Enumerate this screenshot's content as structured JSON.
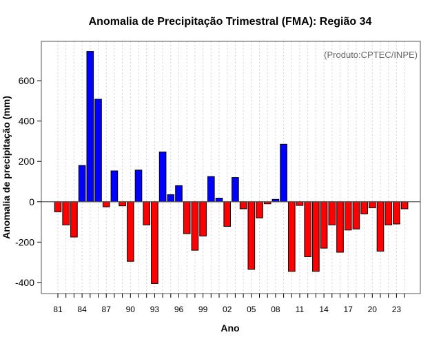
{
  "chart_data": {
    "type": "bar",
    "title": "Anomalia de Precipitação Trimestral (FMA): Região 34",
    "xlabel": "Ano",
    "ylabel": "Anomalia de precipitação (mm)",
    "watermark": "(Produto:CPTEC/INPE)",
    "ylim": [
      -455,
      795
    ],
    "yticks": [
      -400,
      -200,
      0,
      200,
      400,
      600
    ],
    "grid": true,
    "legend": "none",
    "positive_color": "#0000ff",
    "negative_color": "#ff0000",
    "zero_line_color": "#555555",
    "years": [
      "81",
      "82",
      "83",
      "84",
      "85",
      "86",
      "87",
      "88",
      "89",
      "90",
      "91",
      "92",
      "93",
      "94",
      "95",
      "96",
      "97",
      "98",
      "99",
      "00",
      "01",
      "02",
      "03",
      "04",
      "05",
      "06",
      "07",
      "08",
      "09",
      "10",
      "11",
      "12",
      "13",
      "14",
      "15",
      "16",
      "17",
      "18",
      "19",
      "20",
      "21",
      "22",
      "23",
      "24"
    ],
    "xtick_labels": [
      "81",
      "84",
      "87",
      "90",
      "93",
      "96",
      "99",
      "02",
      "05",
      "08",
      "11",
      "14",
      "17",
      "20",
      "23"
    ],
    "values": [
      -50,
      -115,
      -175,
      180,
      745,
      508,
      -25,
      153,
      -20,
      -295,
      157,
      -115,
      -405,
      247,
      35,
      80,
      -158,
      -240,
      -170,
      125,
      18,
      -122,
      120,
      -35,
      -335,
      -80,
      -10,
      12,
      285,
      -345,
      -18,
      -272,
      -345,
      -230,
      -115,
      -250,
      -140,
      -135,
      -60,
      -30,
      -245,
      -115,
      -110,
      -35
    ]
  }
}
